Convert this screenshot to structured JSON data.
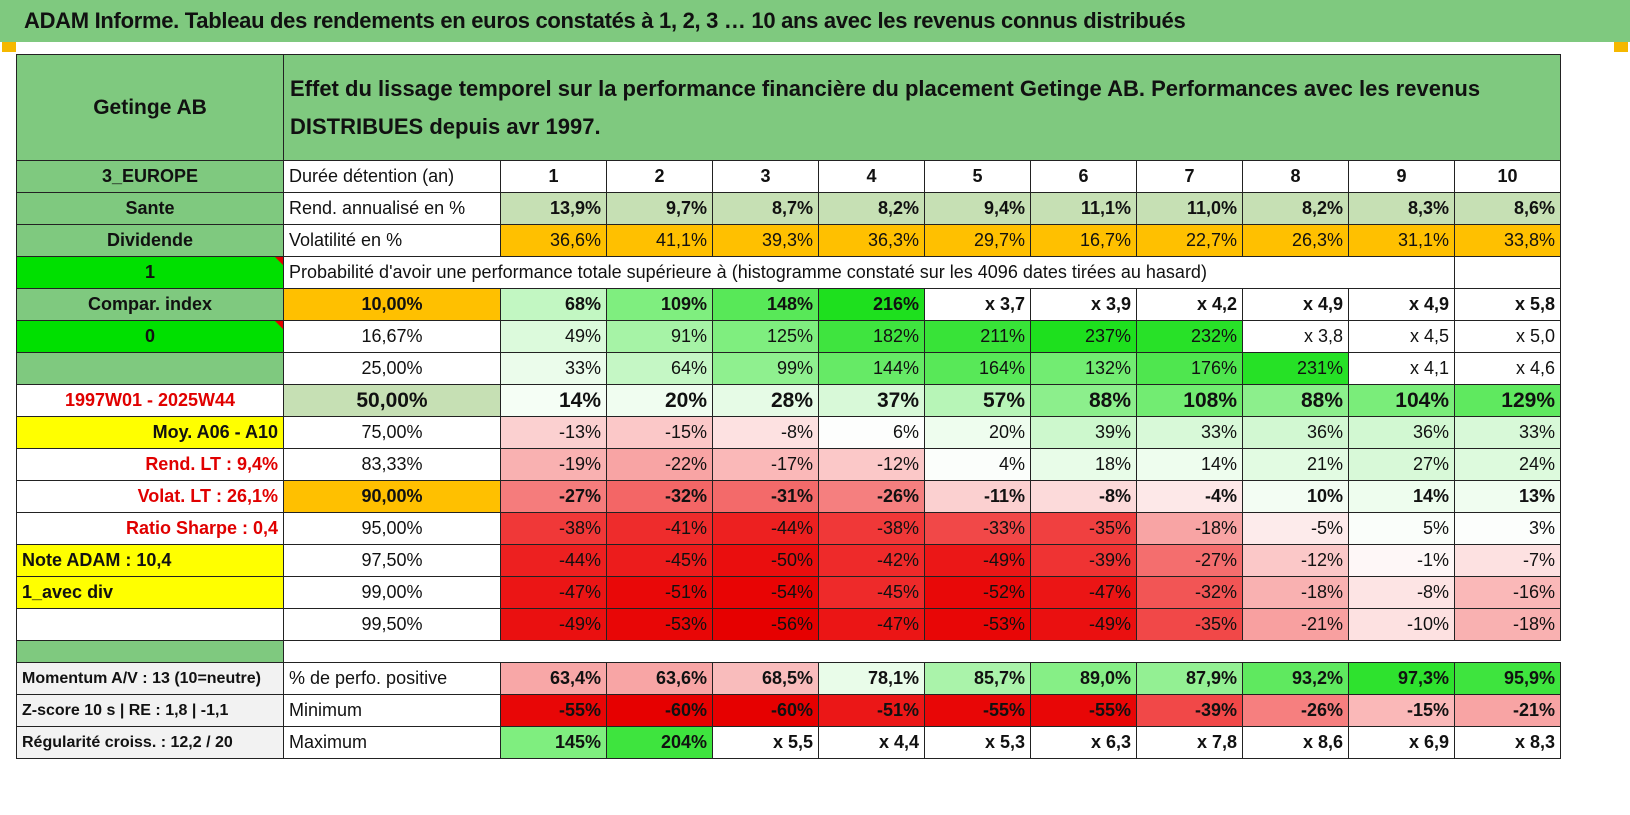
{
  "title": "ADAM Informe. Tableau des rendements en euros constatés à 1, 2, 3 … 10 ans avec les revenus connus distribués",
  "header": {
    "name": "Getinge AB",
    "description": "Effet du lissage temporel sur la performance financière du placement Getinge AB. Performances avec les revenus DISTRIBUES depuis avr 1997."
  },
  "left": {
    "region": "3_EUROPE",
    "sector": "Sante",
    "dividend": "Dividende",
    "flag1": "1",
    "compar": "Compar. index",
    "flag0": "0",
    "blank": "",
    "period": "1997W01 - 2025W44",
    "moy": "Moy. A06 - A10",
    "rend_lt": "Rend. LT :   9,4%",
    "volat_lt": "Volat. LT :   26,1%",
    "sharpe": "Ratio Sharpe :    0,4",
    "note": "Note ADAM : 10,4",
    "avec_div": "1_avec div",
    "momentum": "Momentum A/V : 13 (10=neutre)",
    "zscore": "Z-score 10 s | RE : 1,8 | -1,1",
    "regularite": "Régularité croiss. : 12,2 / 20"
  },
  "labels": {
    "duree": "Durée détention (an)",
    "rend": "Rend. annualisé en %",
    "vol": "Volatilité en %",
    "proba": "Probabilité d'avoir une performance totale supérieure à (histogramme constaté sur les 4096 dates tirées au hasard)",
    "pos": "% de perfo. positive",
    "min": "Minimum",
    "max": "Maximum"
  },
  "years": [
    "1",
    "2",
    "3",
    "4",
    "5",
    "6",
    "7",
    "8",
    "9",
    "10"
  ],
  "rend": [
    "13,9%",
    "9,7%",
    "8,7%",
    "8,2%",
    "9,4%",
    "11,1%",
    "11,0%",
    "8,2%",
    "8,3%",
    "8,6%"
  ],
  "vol": [
    "36,6%",
    "41,1%",
    "39,3%",
    "36,3%",
    "29,7%",
    "16,7%",
    "22,7%",
    "26,3%",
    "31,1%",
    "33,8%"
  ],
  "proba_rows": [
    {
      "p": "10,00%",
      "v": [
        "68%",
        "109%",
        "148%",
        "216%",
        "x 3,7",
        "x 3,9",
        "x 4,2",
        "x 4,9",
        "x 4,9",
        "x 5,8"
      ]
    },
    {
      "p": "16,67%",
      "v": [
        "49%",
        "91%",
        "125%",
        "182%",
        "211%",
        "237%",
        "232%",
        "x 3,8",
        "x 4,5",
        "x 5,0"
      ]
    },
    {
      "p": "25,00%",
      "v": [
        "33%",
        "64%",
        "99%",
        "144%",
        "164%",
        "132%",
        "176%",
        "231%",
        "x 4,1",
        "x 4,6"
      ]
    },
    {
      "p": "50,00%",
      "v": [
        "14%",
        "20%",
        "28%",
        "37%",
        "57%",
        "88%",
        "108%",
        "88%",
        "104%",
        "129%"
      ]
    },
    {
      "p": "75,00%",
      "v": [
        "-13%",
        "-15%",
        "-8%",
        "6%",
        "20%",
        "39%",
        "33%",
        "36%",
        "36%",
        "33%"
      ]
    },
    {
      "p": "83,33%",
      "v": [
        "-19%",
        "-22%",
        "-17%",
        "-12%",
        "4%",
        "18%",
        "14%",
        "21%",
        "27%",
        "24%"
      ]
    },
    {
      "p": "90,00%",
      "v": [
        "-27%",
        "-32%",
        "-31%",
        "-26%",
        "-11%",
        "-8%",
        "-4%",
        "10%",
        "14%",
        "13%"
      ]
    },
    {
      "p": "95,00%",
      "v": [
        "-38%",
        "-41%",
        "-44%",
        "-38%",
        "-33%",
        "-35%",
        "-18%",
        "-5%",
        "5%",
        "3%"
      ]
    },
    {
      "p": "97,50%",
      "v": [
        "-44%",
        "-45%",
        "-50%",
        "-42%",
        "-49%",
        "-39%",
        "-27%",
        "-12%",
        "-1%",
        "-7%"
      ]
    },
    {
      "p": "99,00%",
      "v": [
        "-47%",
        "-51%",
        "-54%",
        "-45%",
        "-52%",
        "-47%",
        "-32%",
        "-18%",
        "-8%",
        "-16%"
      ]
    },
    {
      "p": "99,50%",
      "v": [
        "-49%",
        "-53%",
        "-56%",
        "-47%",
        "-53%",
        "-49%",
        "-35%",
        "-21%",
        "-10%",
        "-18%"
      ]
    }
  ],
  "pos": [
    "63,4%",
    "63,6%",
    "68,5%",
    "78,1%",
    "85,7%",
    "89,0%",
    "87,9%",
    "93,2%",
    "97,3%",
    "95,9%"
  ],
  "min": [
    "-55%",
    "-60%",
    "-60%",
    "-51%",
    "-55%",
    "-55%",
    "-39%",
    "-26%",
    "-15%",
    "-21%"
  ],
  "max": [
    "145%",
    "204%",
    "x 5,5",
    "x 4,4",
    "x 5,3",
    "x 6,3",
    "x 7,8",
    "x 8,6",
    "x 6,9",
    "x 8,3"
  ],
  "colors": {
    "header_green": "#7fc97f",
    "rend_bg": "#c6e0b4",
    "vol_bg": "#ffc000",
    "label_yellow": "#ffff00",
    "label_orange": "#ffc000",
    "flag_lime": "#00e000",
    "red_text": "#e00000"
  },
  "cell_colors": {
    "proba": [
      [
        "#c2f7c2",
        "#7fee7f",
        "#58e858",
        "#1ee01e",
        "#ffffff",
        "#ffffff",
        "#ffffff",
        "#ffffff",
        "#ffffff",
        "#ffffff"
      ],
      [
        "#dcfadc",
        "#a6f3a6",
        "#7fee7f",
        "#3fe43f",
        "#38e338",
        "#1ee01e",
        "#28e128",
        "#ffffff",
        "#ffffff",
        "#ffffff"
      ],
      [
        "#ebfceb",
        "#c5f7c5",
        "#8ff08f",
        "#66ea66",
        "#58e858",
        "#72ec72",
        "#4fe64f",
        "#26e126",
        "#ffffff",
        "#ffffff"
      ],
      [
        "#f5fef5",
        "#f0fdf0",
        "#e6fbe6",
        "#d8f9d8",
        "#b7f5b7",
        "#8cef8c",
        "#72ec72",
        "#8cef8c",
        "#7aed7a",
        "#5fe95f"
      ],
      [
        "#fbd0d0",
        "#fbc8c8",
        "#fde1e1",
        "#fdfefd",
        "#eefdee",
        "#cdf8cd",
        "#d8f9d8",
        "#d2f8d2",
        "#d2f8d2",
        "#d8f9d8"
      ],
      [
        "#f9b1b1",
        "#f8a4a4",
        "#fab8b8",
        "#fbc8c8",
        "#fbfefb",
        "#e8fce8",
        "#eefdee",
        "#e2fbe2",
        "#d8f9d8",
        "#ddfadd"
      ],
      [
        "#f57c7c",
        "#f36666",
        "#f36a6a",
        "#f57f7f",
        "#fbd0d0",
        "#fcdada",
        "#fde8e8",
        "#f3fdf3",
        "#eefdee",
        "#f0fdf0"
      ],
      [
        "#f03838",
        "#ee2c2c",
        "#ed2020",
        "#f03838",
        "#f14848",
        "#f04040",
        "#f8a4a4",
        "#fdebeb",
        "#fafefa",
        "#fcfefc"
      ],
      [
        "#ed2020",
        "#ec1c1c",
        "#ea0e0e",
        "#ee2a2a",
        "#eb1717",
        "#ef3333",
        "#f46e6e",
        "#fbc8c8",
        "#fef7f7",
        "#fde1e1"
      ],
      [
        "#eb1515",
        "#e90808",
        "#e80404",
        "#ee2a2a",
        "#e80808",
        "#eb1515",
        "#f25555",
        "#f9b1b1",
        "#fde4e4",
        "#fab8b8"
      ],
      [
        "#ea1010",
        "#e80606",
        "#e60000",
        "#eb1515",
        "#e80606",
        "#ea1010",
        "#f14848",
        "#f8a0a0",
        "#fde1e1",
        "#f9b1b1"
      ]
    ],
    "pos": [
      "#f8a7a7",
      "#f8a5a5",
      "#f9bcbc",
      "#e9fce9",
      "#aaf3aa",
      "#86ef86",
      "#93f093",
      "#5fe95f",
      "#2ee22e",
      "#3ee43e"
    ],
    "min": [
      "#e80606",
      "#e60000",
      "#e60000",
      "#eb1717",
      "#e80606",
      "#e80606",
      "#f14848",
      "#f67f7f",
      "#fab8b8",
      "#f8a4a4"
    ],
    "max": [
      "#7fee7f",
      "#3ee43e",
      "#ffffff",
      "#ffffff",
      "#ffffff",
      "#ffffff",
      "#ffffff",
      "#ffffff",
      "#ffffff",
      "#ffffff"
    ]
  }
}
